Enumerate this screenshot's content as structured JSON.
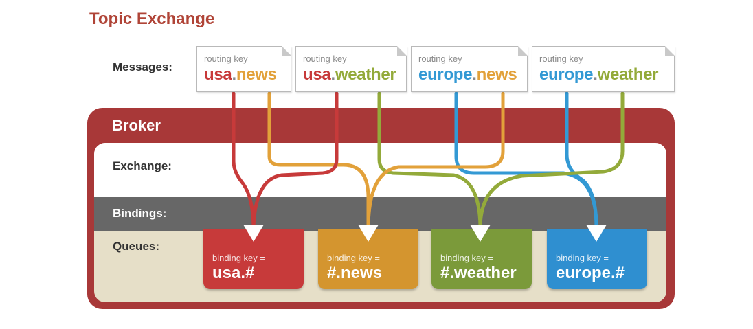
{
  "title": "Topic Exchange",
  "labels": {
    "messages": "Messages:",
    "broker": "Broker",
    "exchange": "Exchange:",
    "bindings": "Bindings:",
    "queues": "Queues:"
  },
  "colors": {
    "red": "#c73a3a",
    "orange": "#e2a13a",
    "green": "#93aa3a",
    "blue": "#3399d4",
    "broker": "#a83838"
  },
  "messages": [
    {
      "routing_label": "routing key =",
      "part1": "usa",
      "dot": ".",
      "part2": "news"
    },
    {
      "routing_label": "routing key =",
      "part1": "usa",
      "dot": ".",
      "part2": "weather"
    },
    {
      "routing_label": "routing key =",
      "part1": "europe",
      "dot": ".",
      "part2": "news"
    },
    {
      "routing_label": "routing key =",
      "part1": "europe",
      "dot": ".",
      "part2": "weather"
    }
  ],
  "queues": [
    {
      "binding_label": "binding key =",
      "key": "usa.#",
      "color": "#c73a3a"
    },
    {
      "binding_label": "binding key =",
      "key": "#.news",
      "color": "#d4952f"
    },
    {
      "binding_label": "binding key =",
      "key": "#.weather",
      "color": "#7b9a3a"
    },
    {
      "binding_label": "binding key =",
      "key": "europe.#",
      "color": "#2f8fd0"
    }
  ]
}
